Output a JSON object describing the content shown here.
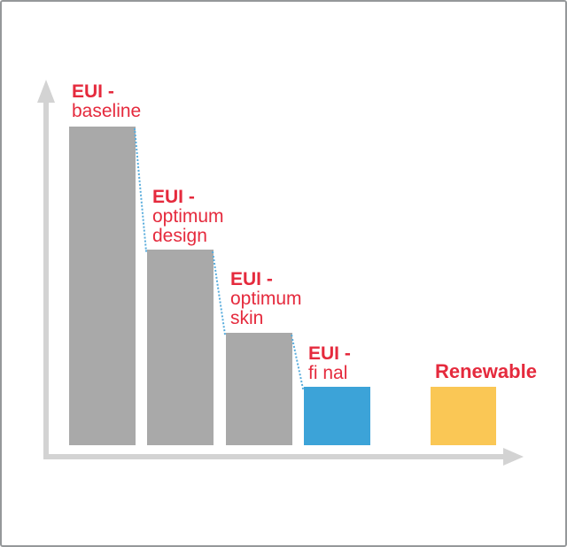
{
  "chart_data": {
    "type": "bar",
    "title": "",
    "xlabel": "",
    "ylabel": "",
    "categories": [
      "EUI - baseline",
      "EUI - optimum design",
      "EUI - optimum skin",
      "EUI - final",
      "Renewable"
    ],
    "values_relative": [
      100,
      61.4,
      35.3,
      18.3,
      18.3
    ],
    "value_note": "no numeric axis shown; bar heights estimated relative to baseline = 100",
    "bar_colors": [
      "#a9a9a9",
      "#a9a9a9",
      "#a9a9a9",
      "#3ca3d8",
      "#fac755"
    ],
    "grid": false,
    "legend": false,
    "axes": {
      "style": "plain gray arrows, no ticks, no tick labels"
    },
    "connector": {
      "style": "dotted",
      "color": "#58acdc",
      "description": "dotted line stepping down across the tops of the EUI bars from baseline to final"
    }
  },
  "labels": {
    "baseline": {
      "line1": "EUI -",
      "line2": "baseline"
    },
    "optimum_design": {
      "line1": "EUI -",
      "line2": "optimum",
      "line3": "design"
    },
    "optimum_skin": {
      "line1": "EUI -",
      "line2": "optimum",
      "line3": "skin"
    },
    "final": {
      "line1": "EUI -",
      "line2": "fi nal"
    },
    "renewable": {
      "text": "Renewable"
    }
  },
  "colors": {
    "label_red": "#e52a3d",
    "bar_gray": "#a9a9a9",
    "bar_blue": "#3ca3d8",
    "bar_yellow": "#fac755",
    "axis_gray": "#d3d3d3",
    "connector_blue": "#58acdc",
    "frame_border_gray": "#95989a",
    "background": "#ffffff"
  }
}
